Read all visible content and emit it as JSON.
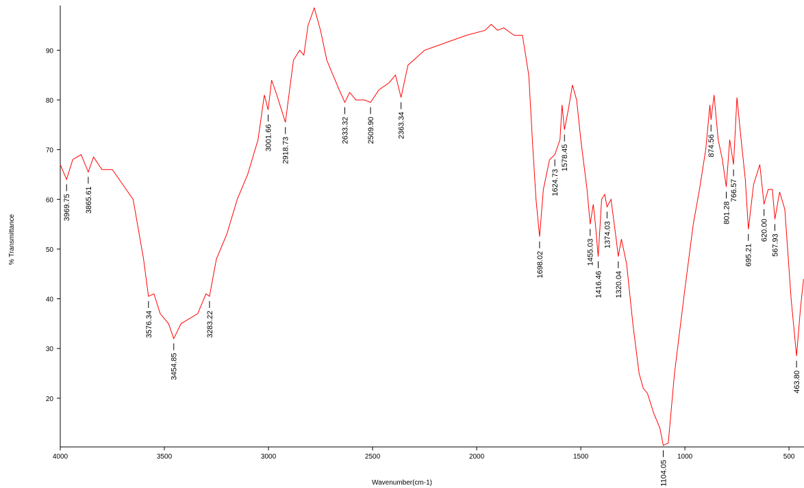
{
  "chart_data": {
    "type": "line",
    "x_label": "Wavenumber(cm-1)",
    "y_label": "% Transmittance",
    "xlim": [
      4000,
      428
    ],
    "ylim": [
      10.2,
      99
    ],
    "xticks": [
      4000,
      3500,
      3000,
      2500,
      2000,
      1500,
      1000,
      500
    ],
    "yticks": [
      20,
      30,
      40,
      50,
      60,
      70,
      80,
      90
    ],
    "color": "#ff0000",
    "x": [
      4000,
      3969.75,
      3940,
      3900,
      3865.61,
      3840,
      3800,
      3750,
      3700,
      3650,
      3600,
      3576.34,
      3550,
      3520,
      3480,
      3454.85,
      3420,
      3380,
      3340,
      3300,
      3283.22,
      3250,
      3200,
      3150,
      3100,
      3050,
      3020,
      3001.66,
      2985,
      2960,
      2918.73,
      2880,
      2850,
      2830,
      2810,
      2780,
      2750,
      2720,
      2700,
      2660,
      2633.32,
      2610,
      2580,
      2540,
      2509.9,
      2470,
      2420,
      2390,
      2363.34,
      2330,
      2250,
      2150,
      2050,
      1960,
      1930,
      1900,
      1870,
      1820,
      1780,
      1750,
      1730,
      1715,
      1698.02,
      1680,
      1650,
      1624.73,
      1600,
      1590,
      1578.45,
      1560,
      1540,
      1520,
      1500,
      1470,
      1455.03,
      1440,
      1430,
      1416.46,
      1400,
      1385,
      1374.03,
      1355,
      1330,
      1320.04,
      1305,
      1280,
      1250,
      1220,
      1200,
      1180,
      1150,
      1120,
      1104.05,
      1080,
      1050,
      1000,
      960,
      930,
      900,
      880,
      874.56,
      860,
      840,
      820,
      801.28,
      785,
      766.57,
      750,
      730,
      710,
      695.21,
      670,
      640,
      620.0,
      600,
      580,
      567.93,
      545,
      520,
      490,
      463.8,
      445,
      430
    ],
    "values": [
      67,
      64,
      68,
      69,
      65.5,
      68.5,
      66,
      66,
      63,
      60,
      48,
      40.5,
      41,
      37,
      35,
      32,
      35,
      36,
      37,
      41,
      40.5,
      48,
      53,
      60,
      65,
      72,
      81,
      78,
      84,
      81,
      75.5,
      88,
      90,
      89,
      95,
      98.5,
      94,
      88,
      86,
      82,
      79.5,
      81.5,
      80,
      80,
      79.5,
      82,
      83.5,
      85,
      80.5,
      87,
      90,
      91.5,
      93,
      94,
      95.2,
      94,
      94.5,
      93,
      93,
      85,
      70,
      60,
      52.5,
      62,
      68,
      69,
      72,
      79,
      74,
      78,
      83,
      80,
      72,
      62,
      55,
      59,
      55,
      48.5,
      60,
      61,
      58.5,
      60,
      52,
      48.5,
      52,
      47,
      35,
      25,
      22,
      21,
      17,
      14,
      10.5,
      11,
      25,
      42,
      55,
      62,
      70,
      79,
      76,
      81,
      72,
      68,
      62.5,
      72,
      67,
      80.5,
      72,
      64,
      54,
      63,
      67,
      59,
      62,
      62,
      56,
      61.5,
      58,
      40,
      28.5,
      38,
      44
    ],
    "peaks": [
      {
        "value": 3969.75,
        "label": "3969.75"
      },
      {
        "value": 3865.61,
        "label": "3865.61"
      },
      {
        "value": 3576.34,
        "label": "3576.34"
      },
      {
        "value": 3454.85,
        "label": "3454.85"
      },
      {
        "value": 3283.22,
        "label": "3283.22"
      },
      {
        "value": 3001.66,
        "label": "3001.66"
      },
      {
        "value": 2918.73,
        "label": "2918.73"
      },
      {
        "value": 2633.32,
        "label": "2633.32"
      },
      {
        "value": 2509.9,
        "label": "2509.90"
      },
      {
        "value": 2363.34,
        "label": "2363.34"
      },
      {
        "value": 1698.02,
        "label": "1698.02"
      },
      {
        "value": 1624.73,
        "label": "1624.73"
      },
      {
        "value": 1578.45,
        "label": "1578.45"
      },
      {
        "value": 1455.03,
        "label": "1455.03"
      },
      {
        "value": 1416.46,
        "label": "1416.46"
      },
      {
        "value": 1374.03,
        "label": "1374.03"
      },
      {
        "value": 1320.04,
        "label": "1320.04"
      },
      {
        "value": 1104.05,
        "label": "1104.05"
      },
      {
        "value": 874.56,
        "label": "874.56"
      },
      {
        "value": 801.28,
        "label": "801.28"
      },
      {
        "value": 766.57,
        "label": "766.57"
      },
      {
        "value": 695.21,
        "label": "695.21"
      },
      {
        "value": 620.0,
        "label": "620.00"
      },
      {
        "value": 567.93,
        "label": "567.93"
      },
      {
        "value": 463.8,
        "label": "463.80"
      }
    ]
  }
}
